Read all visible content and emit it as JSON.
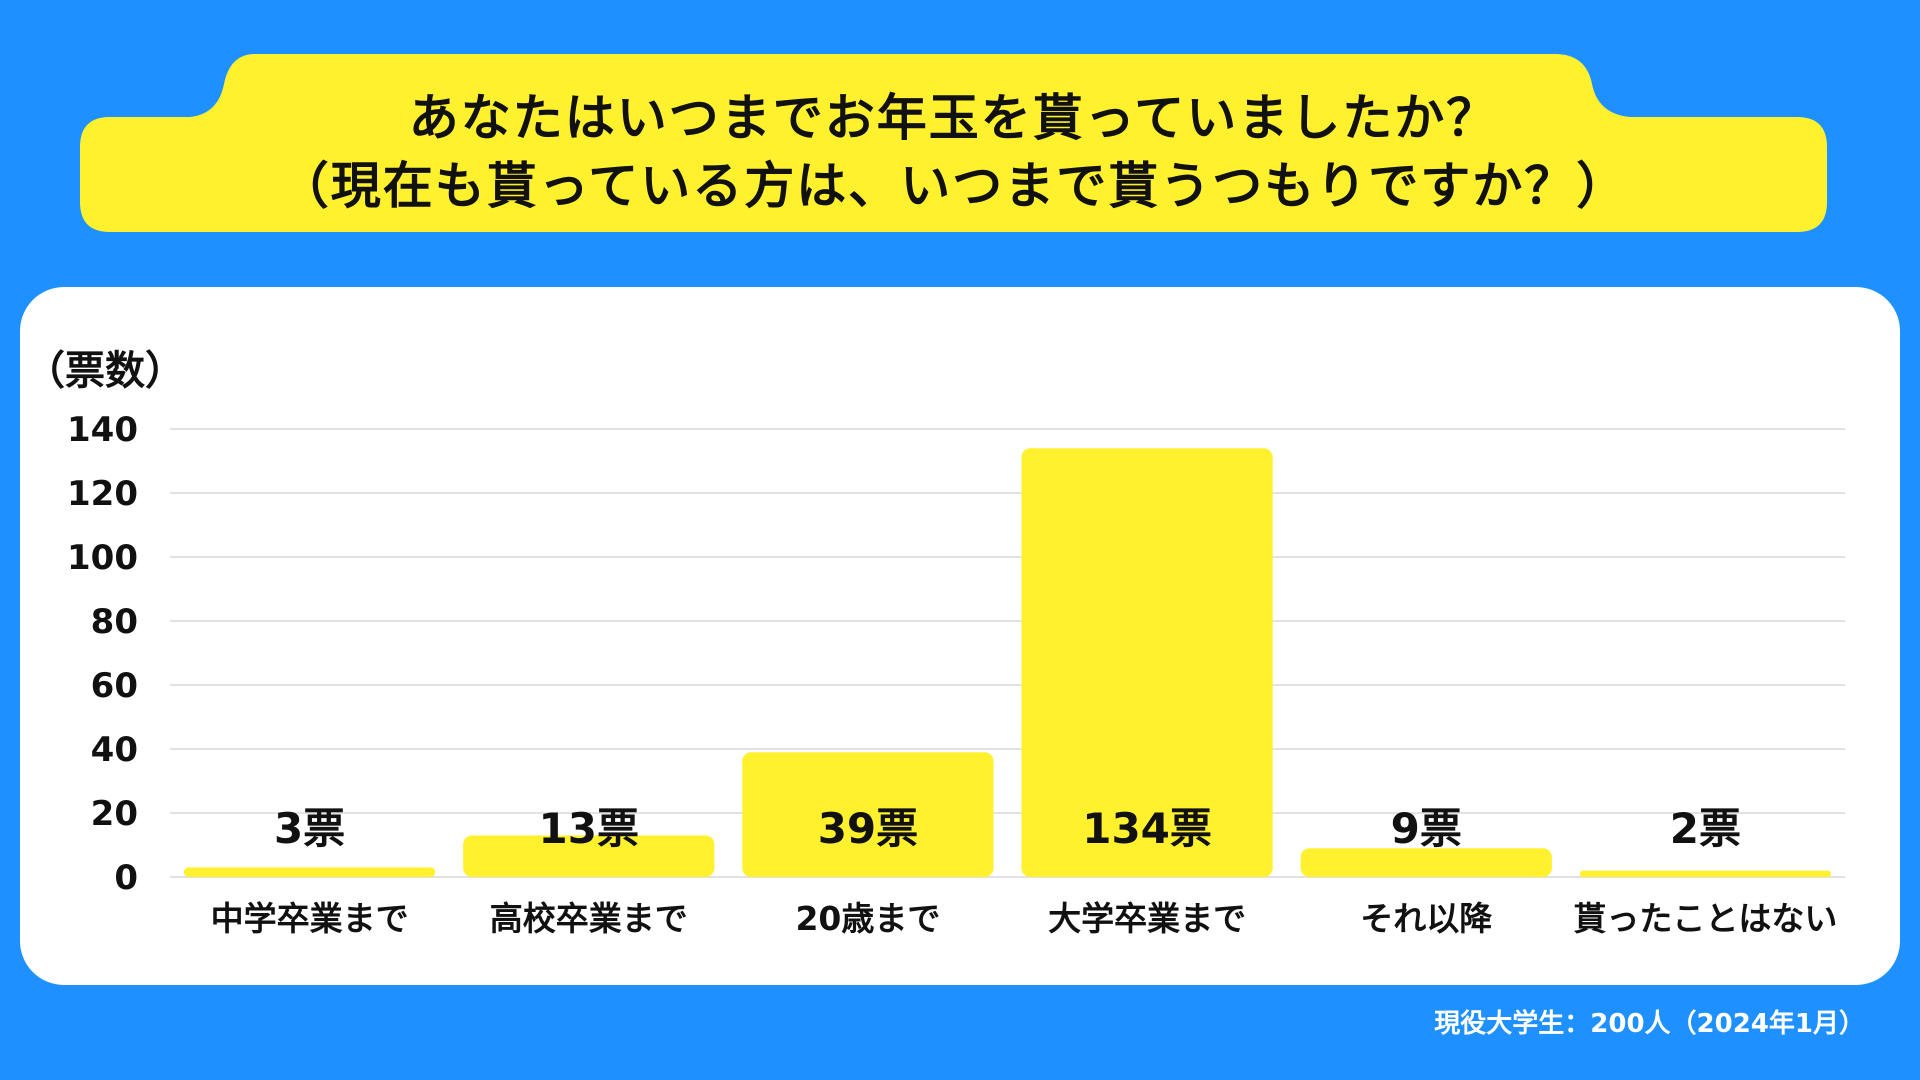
{
  "title": {
    "line1": "あなたはいつまでお年玉を貰っていましたか？",
    "line2": "（現在も貰っている方は、いつまで貰うつもりですか？）"
  },
  "footnote": "現役大学生：200人（2024年1月）",
  "colors": {
    "background": "#1e90ff",
    "banner": "#fff12e",
    "bar": "#fff12e",
    "card": "#ffffff",
    "grid": "#d9d9d9",
    "text": "#111111"
  },
  "chart_data": {
    "type": "bar",
    "ylabel": "（票数）",
    "ylim": [
      0,
      140
    ],
    "yticks": [
      0,
      20,
      40,
      60,
      80,
      100,
      120,
      140
    ],
    "grid": true,
    "categories": [
      "中学卒業まで",
      "高校卒業まで",
      "20歳まで",
      "大学卒業まで",
      "それ以降",
      "貰ったことはない"
    ],
    "values": [
      3,
      13,
      39,
      134,
      9,
      2
    ],
    "data_labels": [
      "3票",
      "13票",
      "39票",
      "134票",
      "9票",
      "2票"
    ]
  }
}
